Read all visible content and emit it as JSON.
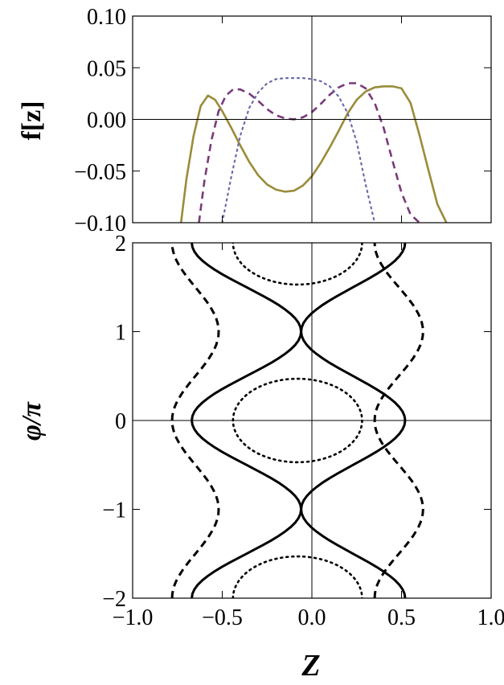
{
  "chart_data": [
    {
      "type": "line",
      "ylabel": "f[z]",
      "xlim": [
        -1.0,
        1.0
      ],
      "ylim": [
        -0.1,
        0.1
      ],
      "x_ticks": [
        -1.0,
        -0.5,
        0.0,
        0.5,
        1.0
      ],
      "y_ticks": [
        "0.10",
        "0.05",
        "0.00",
        "−0.05",
        "−0.10"
      ],
      "y_tick_values": [
        0.1,
        0.05,
        0.0,
        -0.05,
        -0.1
      ],
      "grid": false,
      "series": [
        {
          "style": "solid",
          "color": "#9a8c3a",
          "x": [
            -0.73,
            -0.7,
            -0.66,
            -0.62,
            -0.58,
            -0.54,
            -0.5,
            -0.45,
            -0.4,
            -0.35,
            -0.3,
            -0.25,
            -0.2,
            -0.15,
            -0.1,
            -0.05,
            0.0,
            0.05,
            0.1,
            0.15,
            0.2,
            0.25,
            0.3,
            0.35,
            0.4,
            0.45,
            0.5,
            0.55,
            0.6,
            0.65,
            0.7,
            0.75
          ],
          "y": [
            -0.1,
            -0.058,
            -0.016,
            0.013,
            0.023,
            0.019,
            0.008,
            -0.008,
            -0.025,
            -0.041,
            -0.054,
            -0.063,
            -0.068,
            -0.07,
            -0.069,
            -0.064,
            -0.055,
            -0.042,
            -0.027,
            -0.011,
            0.006,
            0.019,
            0.027,
            0.031,
            0.032,
            0.032,
            0.03,
            0.016,
            -0.015,
            -0.049,
            -0.082,
            -0.1
          ]
        },
        {
          "style": "dashed",
          "color": "#7a3a7a",
          "x": [
            -0.63,
            -0.6,
            -0.56,
            -0.52,
            -0.48,
            -0.44,
            -0.4,
            -0.35,
            -0.3,
            -0.25,
            -0.2,
            -0.15,
            -0.1,
            -0.05,
            0.0,
            0.05,
            0.1,
            0.15,
            0.2,
            0.25,
            0.3,
            0.35,
            0.4,
            0.45,
            0.5,
            0.55,
            0.6
          ],
          "y": [
            -0.1,
            -0.06,
            -0.02,
            0.008,
            0.023,
            0.029,
            0.029,
            0.025,
            0.018,
            0.01,
            0.004,
            0.001,
            0.0,
            0.002,
            0.007,
            0.015,
            0.024,
            0.031,
            0.035,
            0.035,
            0.03,
            0.016,
            -0.008,
            -0.04,
            -0.071,
            -0.092,
            -0.1
          ]
        },
        {
          "style": "dotted",
          "color": "#6a6aaa",
          "x": [
            -0.5,
            -0.45,
            -0.4,
            -0.35,
            -0.3,
            -0.25,
            -0.2,
            -0.15,
            -0.1,
            -0.05,
            0.0,
            0.05,
            0.1,
            0.15,
            0.2,
            0.25,
            0.3,
            0.35
          ],
          "y": [
            -0.1,
            -0.056,
            -0.016,
            0.011,
            0.026,
            0.035,
            0.039,
            0.04,
            0.04,
            0.04,
            0.039,
            0.037,
            0.032,
            0.022,
            0.006,
            -0.022,
            -0.063,
            -0.1
          ]
        }
      ]
    },
    {
      "type": "line",
      "xlabel": "Z",
      "ylabel": "φ/π",
      "xlim": [
        -1.0,
        1.0
      ],
      "ylim": [
        -2,
        2
      ],
      "x_ticks": [
        -1.0,
        -0.5,
        0.0,
        0.5,
        1.0
      ],
      "x_tick_labels": [
        "−1.0",
        "−0.5",
        "0.0",
        "0.5",
        "1.0"
      ],
      "y_ticks": [
        "2",
        "1",
        "0",
        "−1",
        "−2"
      ],
      "y_tick_values": [
        2,
        1,
        0,
        -1,
        -2
      ],
      "grid": false,
      "separatrix_zero_phase_z": [
        -0.67,
        0.52
      ],
      "separatrix_crossing_z": -0.06,
      "series": [
        {
          "style": "solid",
          "color": "#000000",
          "branch": "A",
          "z_values": [
            -0.67,
            0.52
          ]
        },
        {
          "style": "solid",
          "color": "#000000",
          "branch": "B",
          "z_values": [
            -0.67,
            0.52
          ]
        },
        {
          "style": "dashed",
          "color": "#000000",
          "z_values": [
            -0.78,
            -0.52,
            0.62,
            0.35
          ]
        },
        {
          "style": "dashed",
          "color": "#000000",
          "z_values": [
            -0.52,
            -0.78,
            0.35,
            0.62
          ]
        },
        {
          "style": "dotted",
          "color": "#000000",
          "centre": [
            -0.08,
            0
          ],
          "half_widths": [
            0.36,
            0.47
          ]
        },
        {
          "style": "dotted",
          "color": "#000000",
          "centre": [
            -0.08,
            2
          ],
          "half_widths": [
            0.36,
            0.47
          ]
        },
        {
          "style": "dotted",
          "color": "#000000",
          "centre": [
            -0.08,
            -2
          ],
          "half_widths": [
            0.36,
            0.47
          ]
        }
      ]
    }
  ]
}
